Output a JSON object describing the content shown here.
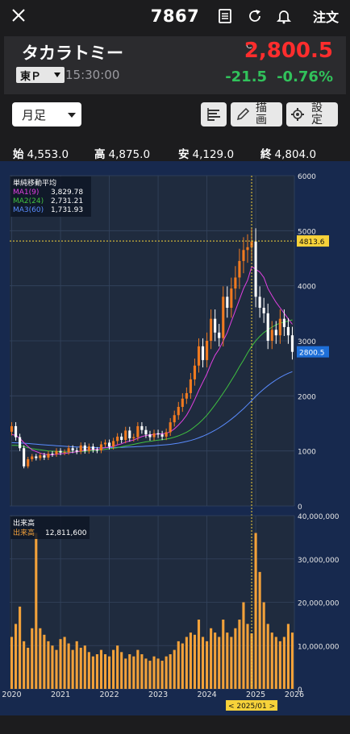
{
  "header": {
    "code": "7867",
    "order_label": "注文"
  },
  "quote": {
    "name": "タカラトミー",
    "market": "東Ｐ",
    "time": "15:30:00",
    "c_mark": "C",
    "price": "2,800.5",
    "change": "-21.5",
    "change_pct": "-0.76%"
  },
  "controls": {
    "period": "月足",
    "draw_label": "描画",
    "settings_label": "設定"
  },
  "ohlc": [
    {
      "label": "始",
      "value": "4,553.0"
    },
    {
      "label": "高",
      "value": "4,875.0"
    },
    {
      "label": "安",
      "value": "4,129.0"
    },
    {
      "label": "終",
      "value": "4,804.0"
    }
  ],
  "colors": {
    "up_candle": "#f07a20",
    "down_candle": "#ffffff",
    "price": "#ff2d2d",
    "change": "#31c25b",
    "ma1": "#e040e0",
    "ma2": "#40c040",
    "ma3": "#5a8cff",
    "volume": "#f2a13a",
    "cursor": "#f7d23a"
  },
  "chart_data": [
    {
      "type": "candlestick",
      "title": "単純移動平均",
      "legend": [
        {
          "name": "MA1",
          "period": "9",
          "value": "3,829.78",
          "color": "#e040e0"
        },
        {
          "name": "MA2",
          "period": "24",
          "value": "2,731.21",
          "color": "#40c040"
        },
        {
          "name": "MA3",
          "period": "60",
          "value": "1,731.93",
          "color": "#5a8cff"
        }
      ],
      "ylim": [
        0,
        6000
      ],
      "y_ticks": [
        "6000",
        "5000",
        "4000",
        "3000",
        "2000",
        "1000",
        "0"
      ],
      "x_ticks": [
        "2020",
        "2021",
        "2022",
        "2023",
        "2024",
        "2025",
        "2026"
      ],
      "cursor_label": "4813.6",
      "last_label": "2800.5",
      "cursor_date": "< 2025/01 >",
      "close": [
        1450,
        1250,
        1050,
        720,
        850,
        900,
        870,
        920,
        880,
        950,
        940,
        1000,
        970,
        980,
        1050,
        1010,
        990,
        1100,
        1000,
        1080,
        1020,
        1010,
        1120,
        1150,
        1080,
        1180,
        1260,
        1200,
        1370,
        1230,
        1250,
        1450,
        1380,
        1300,
        1250,
        1320,
        1300,
        1260,
        1340,
        1520,
        1650,
        1800,
        1950,
        2050,
        2300,
        2550,
        2900,
        2650,
        3000,
        3400,
        3150,
        3050,
        3800,
        3600,
        3950,
        4150,
        4450,
        4650,
        4700,
        4804,
        3800,
        3600,
        3500,
        3000,
        3200,
        3100,
        3400,
        3250,
        3100,
        2800
      ],
      "ma1": [
        1300,
        1280,
        1230,
        1150,
        1080,
        1020,
        990,
        960,
        940,
        930,
        930,
        940,
        950,
        955,
        965,
        975,
        985,
        1000,
        1010,
        1020,
        1025,
        1030,
        1045,
        1060,
        1070,
        1085,
        1110,
        1130,
        1160,
        1180,
        1200,
        1230,
        1260,
        1280,
        1290,
        1300,
        1310,
        1310,
        1320,
        1350,
        1400,
        1470,
        1550,
        1650,
        1780,
        1930,
        2100,
        2250,
        2400,
        2580,
        2740,
        2850,
        3000,
        3150,
        3350,
        3550,
        3750,
        3950,
        4100,
        4350,
        4300,
        4250,
        4150,
        3950,
        3820,
        3700,
        3600,
        3500,
        3400,
        3300
      ],
      "ma2": [
        1100,
        1100,
        1095,
        1080,
        1060,
        1040,
        1030,
        1020,
        1010,
        1000,
        995,
        990,
        985,
        982,
        980,
        980,
        985,
        990,
        995,
        1000,
        1005,
        1010,
        1020,
        1030,
        1040,
        1050,
        1060,
        1075,
        1090,
        1105,
        1120,
        1135,
        1150,
        1165,
        1175,
        1185,
        1195,
        1205,
        1215,
        1230,
        1250,
        1275,
        1305,
        1340,
        1385,
        1440,
        1500,
        1570,
        1650,
        1740,
        1840,
        1940,
        2050,
        2160,
        2280,
        2400,
        2530,
        2650,
        2780,
        2900,
        3000,
        3080,
        3150,
        3200,
        3250,
        3290,
        3320,
        3340,
        3360,
        3380
      ],
      "ma3": [
        1150,
        1148,
        1145,
        1140,
        1135,
        1128,
        1122,
        1116,
        1110,
        1105,
        1100,
        1095,
        1090,
        1085,
        1080,
        1076,
        1072,
        1068,
        1066,
        1064,
        1062,
        1060,
        1060,
        1060,
        1061,
        1062,
        1064,
        1066,
        1068,
        1071,
        1074,
        1078,
        1082,
        1086,
        1090,
        1095,
        1100,
        1106,
        1112,
        1120,
        1130,
        1142,
        1156,
        1172,
        1190,
        1212,
        1238,
        1268,
        1300,
        1336,
        1376,
        1420,
        1468,
        1520,
        1576,
        1636,
        1700,
        1768,
        1840,
        1915,
        1990,
        2060,
        2125,
        2185,
        2240,
        2290,
        2335,
        2375,
        2410,
        2440
      ]
    },
    {
      "type": "bar",
      "title": "出来高",
      "series_label": "出来高",
      "value_label": "12,811,600",
      "ylim": [
        0,
        40000000
      ],
      "y_ticks": [
        "40,000,000",
        "30,000,000",
        "20,000,000",
        "10,000,000",
        "0"
      ],
      "values": [
        12000000,
        15000000,
        19000000,
        11000000,
        9500000,
        14000000,
        36000000,
        14000000,
        12500000,
        11000000,
        10000000,
        9000000,
        11500000,
        12000000,
        10500000,
        9000000,
        11000000,
        9500000,
        10000000,
        8500000,
        7500000,
        8000000,
        9000000,
        8000000,
        7500000,
        9000000,
        10000000,
        8500000,
        7000000,
        8000000,
        7500000,
        9000000,
        8000000,
        7000000,
        6500000,
        7500000,
        7000000,
        6500000,
        7500000,
        8000000,
        9000000,
        11000000,
        10500000,
        12000000,
        13000000,
        12500000,
        16000000,
        12000000,
        11000000,
        14000000,
        13000000,
        12000000,
        16000000,
        13000000,
        12000000,
        14000000,
        16000000,
        20000000,
        15000000,
        12811600,
        36000000,
        27000000,
        20000000,
        15000000,
        13000000,
        12000000,
        11000000,
        12000000,
        15000000,
        13000000
      ]
    }
  ]
}
